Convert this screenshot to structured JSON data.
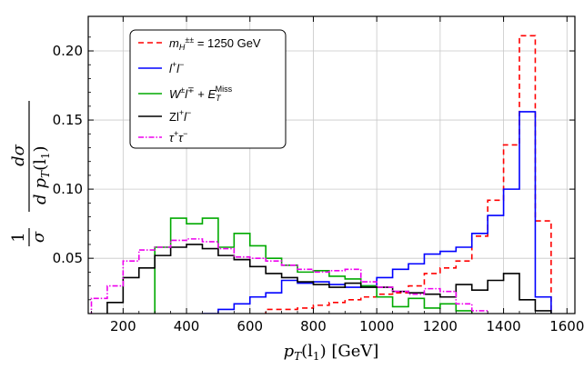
{
  "chart_data": {
    "type": "line",
    "style": "step-histogram",
    "xlabel": "p_T(l_1) [GeV]",
    "ylabel": "1/σ dσ/(d p_T(l_1))",
    "ylabel_parts": {
      "one": "1",
      "sigma": "σ",
      "dsigma": "dσ",
      "d": "d",
      "pt": "p",
      "T": "T",
      "l": "(l",
      "sub1": "1",
      "close": ")"
    },
    "xlabel_parts": {
      "p": "p",
      "T": "T",
      "l": "(l",
      "sub1": "1",
      "close": ")",
      "unit": " [GeV]"
    },
    "xlim": [
      90,
      1625
    ],
    "ylim": [
      0.01,
      0.225
    ],
    "xticks": [
      200,
      400,
      600,
      800,
      1000,
      1200,
      1400,
      1600
    ],
    "xtick_labels": [
      "200",
      "400",
      "600",
      "800",
      "1000",
      "1200",
      "1400",
      "1600"
    ],
    "yticks": [
      0.05,
      0.1,
      0.15,
      0.2
    ],
    "ytick_labels": [
      "0.05",
      "0.10",
      "0.15",
      "0.20"
    ],
    "grid": true,
    "legend_position": "top-left",
    "bin_width": 50,
    "series": [
      {
        "name": "m_H±± = 1250 GeV",
        "legend_parts": {
          "m": "m",
          "sub": "H",
          "sup": "±±",
          "rest": " = 1250 GeV"
        },
        "color": "#ff0000",
        "dash": "6,4",
        "bins": [
          {
            "x": 650,
            "y": 0.013
          },
          {
            "x": 700,
            "y": 0.013
          },
          {
            "x": 750,
            "y": 0.014
          },
          {
            "x": 800,
            "y": 0.016
          },
          {
            "x": 850,
            "y": 0.018
          },
          {
            "x": 900,
            "y": 0.02
          },
          {
            "x": 950,
            "y": 0.022
          },
          {
            "x": 1000,
            "y": 0.024
          },
          {
            "x": 1050,
            "y": 0.025
          },
          {
            "x": 1100,
            "y": 0.03
          },
          {
            "x": 1150,
            "y": 0.039
          },
          {
            "x": 1200,
            "y": 0.043
          },
          {
            "x": 1250,
            "y": 0.048
          },
          {
            "x": 1300,
            "y": 0.066
          },
          {
            "x": 1350,
            "y": 0.092
          },
          {
            "x": 1400,
            "y": 0.132
          },
          {
            "x": 1450,
            "y": 0.211
          },
          {
            "x": 1500,
            "y": 0.077
          }
        ]
      },
      {
        "name": "l+l-",
        "legend_parts": {
          "a": "l",
          "asup": "+",
          "b": "l",
          "bsup": "−"
        },
        "color": "#0000ff",
        "dash": "",
        "bins": [
          {
            "x": 450,
            "y": 0.01
          },
          {
            "x": 500,
            "y": 0.013
          },
          {
            "x": 550,
            "y": 0.017
          },
          {
            "x": 600,
            "y": 0.022
          },
          {
            "x": 650,
            "y": 0.025
          },
          {
            "x": 700,
            "y": 0.034
          },
          {
            "x": 750,
            "y": 0.032
          },
          {
            "x": 800,
            "y": 0.033
          },
          {
            "x": 850,
            "y": 0.031
          },
          {
            "x": 900,
            "y": 0.029
          },
          {
            "x": 950,
            "y": 0.03
          },
          {
            "x": 1000,
            "y": 0.036
          },
          {
            "x": 1050,
            "y": 0.042
          },
          {
            "x": 1100,
            "y": 0.046
          },
          {
            "x": 1150,
            "y": 0.053
          },
          {
            "x": 1200,
            "y": 0.055
          },
          {
            "x": 1250,
            "y": 0.058
          },
          {
            "x": 1300,
            "y": 0.068
          },
          {
            "x": 1350,
            "y": 0.081
          },
          {
            "x": 1400,
            "y": 0.1
          },
          {
            "x": 1450,
            "y": 0.156
          },
          {
            "x": 1500,
            "y": 0.022
          }
        ]
      },
      {
        "name": "W±l∓ + E_T^Miss",
        "legend_parts": {
          "w": "W",
          "wsup": "±",
          "l": "l",
          "lsup": "∓",
          "plus": " + ",
          "e": "E",
          "esub": "T",
          "esup": "Miss"
        },
        "color": "#00aa00",
        "dash": "",
        "bins": [
          {
            "x": 300,
            "y": 0.058
          },
          {
            "x": 350,
            "y": 0.079
          },
          {
            "x": 400,
            "y": 0.075
          },
          {
            "x": 450,
            "y": 0.079
          },
          {
            "x": 500,
            "y": 0.058
          },
          {
            "x": 550,
            "y": 0.068
          },
          {
            "x": 600,
            "y": 0.059
          },
          {
            "x": 650,
            "y": 0.05
          },
          {
            "x": 700,
            "y": 0.045
          },
          {
            "x": 750,
            "y": 0.04
          },
          {
            "x": 800,
            "y": 0.041
          },
          {
            "x": 850,
            "y": 0.037
          },
          {
            "x": 900,
            "y": 0.035
          },
          {
            "x": 950,
            "y": 0.03
          },
          {
            "x": 1000,
            "y": 0.022
          },
          {
            "x": 1050,
            "y": 0.015
          },
          {
            "x": 1100,
            "y": 0.021
          },
          {
            "x": 1150,
            "y": 0.014
          },
          {
            "x": 1200,
            "y": 0.017
          },
          {
            "x": 1250,
            "y": 0.012
          }
        ]
      },
      {
        "name": "Zl+l-",
        "legend_parts": {
          "z": "Zl",
          "zsup": "+",
          "l": "l",
          "lsup": "−"
        },
        "color": "#000000",
        "dash": "",
        "bins": [
          {
            "x": 150,
            "y": 0.018
          },
          {
            "x": 200,
            "y": 0.036
          },
          {
            "x": 250,
            "y": 0.043
          },
          {
            "x": 300,
            "y": 0.052
          },
          {
            "x": 350,
            "y": 0.058
          },
          {
            "x": 400,
            "y": 0.06
          },
          {
            "x": 450,
            "y": 0.057
          },
          {
            "x": 500,
            "y": 0.052
          },
          {
            "x": 550,
            "y": 0.049
          },
          {
            "x": 600,
            "y": 0.044
          },
          {
            "x": 650,
            "y": 0.039
          },
          {
            "x": 700,
            "y": 0.036
          },
          {
            "x": 750,
            "y": 0.033
          },
          {
            "x": 800,
            "y": 0.031
          },
          {
            "x": 850,
            "y": 0.029
          },
          {
            "x": 900,
            "y": 0.032
          },
          {
            "x": 950,
            "y": 0.029
          },
          {
            "x": 1000,
            "y": 0.029
          },
          {
            "x": 1050,
            "y": 0.026
          },
          {
            "x": 1100,
            "y": 0.025
          },
          {
            "x": 1150,
            "y": 0.024
          },
          {
            "x": 1200,
            "y": 0.022
          },
          {
            "x": 1250,
            "y": 0.031
          },
          {
            "x": 1300,
            "y": 0.027
          },
          {
            "x": 1350,
            "y": 0.034
          },
          {
            "x": 1400,
            "y": 0.039
          },
          {
            "x": 1450,
            "y": 0.02
          },
          {
            "x": 1500,
            "y": 0.012
          }
        ]
      },
      {
        "name": "τ+τ-",
        "legend_parts": {
          "a": "τ",
          "asup": "+",
          "b": "τ",
          "bsup": "−"
        },
        "color": "#ee00ee",
        "dash": "6,2,1.5,2",
        "bins": [
          {
            "x": 100,
            "y": 0.021
          },
          {
            "x": 150,
            "y": 0.03
          },
          {
            "x": 200,
            "y": 0.048
          },
          {
            "x": 250,
            "y": 0.056
          },
          {
            "x": 300,
            "y": 0.058
          },
          {
            "x": 350,
            "y": 0.063
          },
          {
            "x": 400,
            "y": 0.064
          },
          {
            "x": 450,
            "y": 0.062
          },
          {
            "x": 500,
            "y": 0.057
          },
          {
            "x": 550,
            "y": 0.051
          },
          {
            "x": 600,
            "y": 0.05
          },
          {
            "x": 650,
            "y": 0.048
          },
          {
            "x": 700,
            "y": 0.045
          },
          {
            "x": 750,
            "y": 0.042
          },
          {
            "x": 800,
            "y": 0.04
          },
          {
            "x": 850,
            "y": 0.041
          },
          {
            "x": 900,
            "y": 0.042
          },
          {
            "x": 950,
            "y": 0.033
          },
          {
            "x": 1000,
            "y": 0.029
          },
          {
            "x": 1050,
            "y": 0.026
          },
          {
            "x": 1100,
            "y": 0.024
          },
          {
            "x": 1150,
            "y": 0.028
          },
          {
            "x": 1200,
            "y": 0.026
          },
          {
            "x": 1250,
            "y": 0.017
          },
          {
            "x": 1300,
            "y": 0.012
          }
        ]
      }
    ]
  }
}
